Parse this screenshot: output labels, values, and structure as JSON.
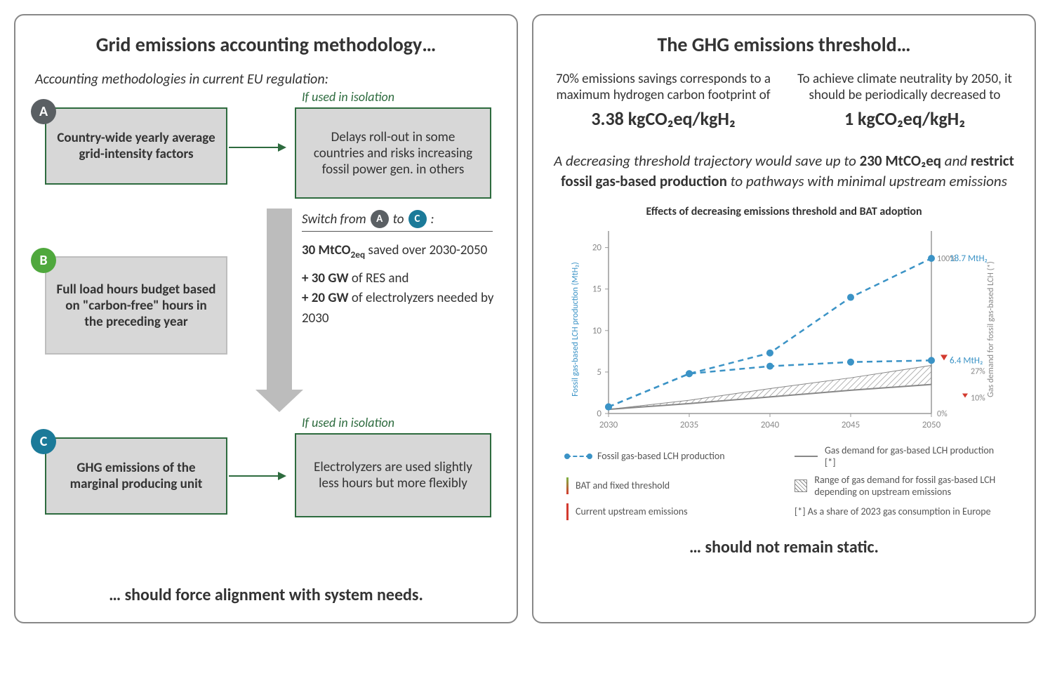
{
  "left": {
    "title": "Grid emissions accounting methodology…",
    "subtitle": "Accounting methodologies in current EU regulation:",
    "bottom": "… should force alignment with system needs.",
    "badges": {
      "A": {
        "label": "A",
        "color": "#5a5f63"
      },
      "B": {
        "label": "B",
        "color": "#4fa83d"
      },
      "C": {
        "label": "C",
        "color": "#1b7a99"
      }
    },
    "boxes": {
      "A_method": "Country-wide yearly average grid-intensity factors",
      "A_result": "Delays roll-out in some countries and risks increasing fossil power gen. in others",
      "B_method": "Full load hours budget based on \"carbon-free\" hours in the preceding year",
      "C_method": "GHG emissions of the marginal producing unit",
      "C_result": "Electrolyzers are used slightly less hours but more flexibly"
    },
    "iso_label": "If used in isolation",
    "switch": {
      "prefix": "Switch from",
      "to": "to",
      "suffix": ":",
      "line1_bold": "30 MtCO",
      "line1_sub": "2eq",
      "line1_rest": " saved over 2030-2050",
      "line2a_bold": "+ 30 GW",
      "line2a_rest": " of RES and ",
      "line2b_bold": "+ 20 GW",
      "line2b_rest": " of electrolyzers needed by 2030"
    },
    "style": {
      "box_border": "#2d6b3e",
      "box_fill": "#d7d7d7",
      "arrow_fill": "#bcbcbc",
      "panel_border": "#888888"
    }
  },
  "right": {
    "title": "The GHG emissions threshold…",
    "bottom": "… should not remain static.",
    "stat1_text": "70% emissions savings corresponds to a maximum hydrogen carbon footprint of",
    "stat1_value": "3.38 kgCO₂eq/kgH₂",
    "stat2_text": "To achieve climate neutrality by 2050, it should be periodically decreased to",
    "stat2_value": "1 kgCO₂eq/kgH₂",
    "trajectory_pre": "A decreasing threshold trajectory would save up to ",
    "trajectory_bold1": "230 MtCO₂eq",
    "trajectory_mid": " and ",
    "trajectory_bold2": "restrict fossil gas-based production",
    "trajectory_post": " to pathways with minimal upstream emissions",
    "chart": {
      "title": "Effects of decreasing emissions threshold and BAT adoption",
      "y_left_label": "Fossil gas-based LCH production (MtH₂)",
      "y_right_label": "Gas demand for fossil gas-based LCH (*)",
      "x_ticks": [
        "2030",
        "2035",
        "2040",
        "2045",
        "2050"
      ],
      "y_left_ticks": [
        0,
        5,
        10,
        15,
        20
      ],
      "y_left_max": 22,
      "y_right_ticks": [
        "0%",
        "100%"
      ],
      "series_upper": [
        0.8,
        4.8,
        7.3,
        14.0,
        18.7
      ],
      "series_lower": [
        0.8,
        4.8,
        5.7,
        6.2,
        6.4
      ],
      "series_gas_solid": [
        0.5,
        1.2,
        2.0,
        2.8,
        3.5
      ],
      "series_gas_upper": [
        0.5,
        1.6,
        3.0,
        4.3,
        5.8
      ],
      "label_upper": "18.7 MtH₂",
      "label_lower": "6.4 MtH₂",
      "pct_upper_top": "100%",
      "pct_27": "27%",
      "pct_10": "10%",
      "colors": {
        "line_blue": "#3b93c6",
        "line_grey": "#888888",
        "hatch": "#888888",
        "grad_top": "#7eb342",
        "grad_bot": "#d33a2f",
        "axis": "#999999",
        "text_blue": "#3b93c6",
        "text_grey": "#888888"
      }
    },
    "legend": {
      "l1": "Fossil gas-based LCH production",
      "l2": "Gas demand for gas-based LCH production [*]",
      "l3": "BAT and fixed threshold",
      "l4": "Range of gas demand for fossil gas-based LCH depending on upstream emissions",
      "l5": "Current upstream emissions",
      "note": "[*] As a share of 2023 gas consumption in Europe"
    }
  }
}
